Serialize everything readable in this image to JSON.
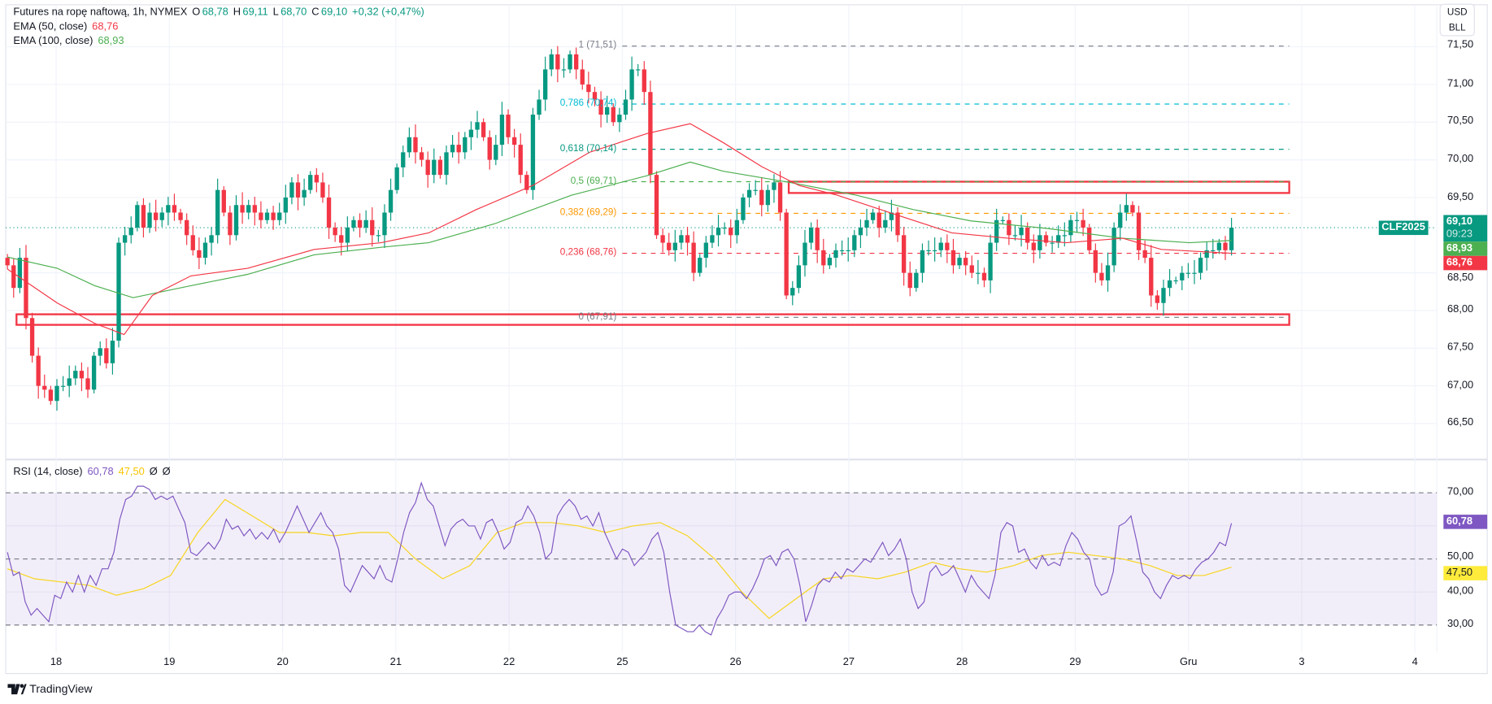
{
  "header": {
    "title": "Futures na ropę naftową, 1h, NYMEX",
    "o_label": "O",
    "o": "68,78",
    "h_label": "H",
    "h": "69,11",
    "l_label": "L",
    "l": "68,70",
    "c_label": "C",
    "c": "69,10",
    "change": "+0,32 (+0,47%)"
  },
  "ema50": {
    "label": "EMA (50, close)",
    "value": "68,76"
  },
  "ema100": {
    "label": "EMA (100, close)",
    "value": "68,93"
  },
  "rsi_legend": {
    "label": "RSI (14, close)",
    "value": "60,78",
    "ma_value": "47,50",
    "empty1": "Ø",
    "empty2": "Ø"
  },
  "unit_box": {
    "currency": "USD",
    "unit": "BLL"
  },
  "badges": {
    "symbol": "CLF2025",
    "price": "69,10",
    "countdown": "09:23",
    "ema100": "68,93",
    "ema50": "68,76",
    "rsi": "60,78",
    "rsi_ma": "47,50"
  },
  "branding": {
    "name": "TradingView"
  },
  "colors": {
    "up": "#089981",
    "down": "#F23645",
    "ema50": "#F23645",
    "ema100": "#4CAF50",
    "rsi": "#7E57C2",
    "rsi_ma": "#F7D51D"
  },
  "chart_data": [
    {
      "type": "candlestick",
      "title": "Futures na ropę naftową, 1h, NYMEX",
      "x_ticks": [
        "18",
        "19",
        "20",
        "21",
        "22",
        "25",
        "26",
        "27",
        "28",
        "29",
        "Gru",
        "3",
        "4"
      ],
      "x_range_days": [
        -0.43,
        10.38
      ],
      "y_ticks": [
        "71,50",
        "71,00",
        "70,50",
        "70,00",
        "69,50",
        "68,50",
        "68,00",
        "67,50",
        "67,00",
        "66,50"
      ],
      "y_tick_values": [
        71.5,
        71,
        70.5,
        70,
        69.5,
        68.5,
        68,
        67.5,
        67,
        66.5
      ],
      "last_price": 69.1,
      "closes": [
        68.6,
        68.3,
        68.7,
        67.9,
        67.4,
        67.0,
        66.95,
        66.8,
        67.0,
        67.0,
        67.1,
        67.2,
        67.1,
        66.95,
        67.4,
        67.5,
        67.3,
        67.6,
        68.9,
        69.0,
        69.1,
        69.4,
        69.1,
        69.3,
        69.2,
        69.3,
        69.4,
        69.3,
        69.2,
        69.0,
        68.8,
        68.7,
        68.9,
        69.0,
        69.6,
        69.3,
        69.0,
        69.4,
        69.3,
        69.4,
        69.3,
        69.2,
        69.3,
        69.2,
        69.3,
        69.5,
        69.7,
        69.5,
        69.6,
        69.8,
        69.7,
        69.5,
        69.1,
        69.0,
        68.9,
        69.1,
        69.2,
        69.1,
        69.2,
        69.0,
        69.0,
        69.3,
        69.6,
        69.9,
        70.1,
        70.3,
        70.1,
        70.0,
        69.8,
        70.0,
        69.8,
        70.1,
        70.2,
        70.1,
        70.3,
        70.4,
        70.5,
        70.3,
        70.0,
        70.2,
        70.6,
        70.3,
        70.2,
        69.8,
        69.6,
        70.6,
        70.8,
        71.2,
        71.4,
        71.2,
        71.2,
        71.4,
        71.2,
        71.0,
        70.9,
        70.8,
        70.6,
        70.7,
        70.5,
        70.6,
        70.8,
        71.2,
        71.2,
        70.9,
        69.8,
        69.0,
        68.9,
        68.8,
        68.9,
        69.0,
        68.9,
        68.5,
        68.7,
        68.9,
        69.0,
        69.1,
        69.1,
        69.0,
        69.2,
        69.5,
        69.6,
        69.6,
        69.4,
        69.6,
        69.7,
        69.3,
        68.2,
        68.3,
        68.6,
        68.9,
        69.1,
        68.8,
        68.6,
        68.7,
        68.8,
        68.8,
        68.8,
        69.0,
        69.1,
        69.2,
        69.3,
        69.1,
        69.2,
        69.3,
        69.0,
        68.5,
        68.3,
        68.5,
        68.8,
        68.8,
        68.8,
        68.9,
        68.8,
        68.6,
        68.7,
        68.6,
        68.5,
        68.5,
        68.4,
        68.9,
        69.2,
        69.2,
        69.0,
        69.0,
        69.1,
        68.9,
        68.8,
        69.0,
        68.9,
        68.9,
        69.0,
        69.0,
        69.2,
        69.2,
        69.1,
        68.8,
        68.5,
        68.4,
        68.6,
        69.1,
        69.3,
        69.4,
        69.3,
        68.8,
        68.7,
        68.2,
        68.1,
        68.3,
        68.4,
        68.4,
        68.5,
        68.5,
        68.5,
        68.7,
        68.8,
        68.8,
        68.9,
        68.8,
        69.1
      ],
      "ema50_points": [
        [
          -0.43,
          68.55
        ],
        [
          0.01,
          68.1
        ],
        [
          0.34,
          67.83
        ],
        [
          0.6,
          67.68
        ],
        [
          0.85,
          68.2
        ],
        [
          1.19,
          68.46
        ],
        [
          1.69,
          68.56
        ],
        [
          2.28,
          68.81
        ],
        [
          2.87,
          68.9
        ],
        [
          3.29,
          69.03
        ],
        [
          3.71,
          69.34
        ],
        [
          4.21,
          69.66
        ],
        [
          4.71,
          70.1
        ],
        [
          5.22,
          70.35
        ],
        [
          5.6,
          70.48
        ],
        [
          5.89,
          70.23
        ],
        [
          6.23,
          69.91
        ],
        [
          6.56,
          69.66
        ],
        [
          6.9,
          69.53
        ],
        [
          7.4,
          69.28
        ],
        [
          7.91,
          69.03
        ],
        [
          8.41,
          68.96
        ],
        [
          8.92,
          68.9
        ],
        [
          9.42,
          68.96
        ],
        [
          9.76,
          68.81
        ],
        [
          10.38,
          68.76
        ]
      ],
      "ema100_points": [
        [
          -0.43,
          68.71
        ],
        [
          0.01,
          68.56
        ],
        [
          0.34,
          68.33
        ],
        [
          0.68,
          68.17
        ],
        [
          1.19,
          68.33
        ],
        [
          1.69,
          68.48
        ],
        [
          2.28,
          68.74
        ],
        [
          2.87,
          68.84
        ],
        [
          3.29,
          68.9
        ],
        [
          3.87,
          69.15
        ],
        [
          4.55,
          69.53
        ],
        [
          5.22,
          69.79
        ],
        [
          5.6,
          69.97
        ],
        [
          5.89,
          69.85
        ],
        [
          6.48,
          69.7
        ],
        [
          7.07,
          69.53
        ],
        [
          7.57,
          69.34
        ],
        [
          8.08,
          69.19
        ],
        [
          8.75,
          69.09
        ],
        [
          9.42,
          68.96
        ],
        [
          10.01,
          68.9
        ],
        [
          10.38,
          68.93
        ]
      ],
      "fibonacci": {
        "range_days": [
          5.0,
          10.89
        ],
        "levels": [
          {
            "label": "1 (71,51)",
            "value": 71.51,
            "color": "#787B86"
          },
          {
            "label": "0,786 (70,74)",
            "value": 70.74,
            "color": "#00BCD4"
          },
          {
            "label": "0,618 (70,14)",
            "value": 70.14,
            "color": "#089981"
          },
          {
            "label": "0,5 (69,71)",
            "value": 69.71,
            "color": "#4CAF50"
          },
          {
            "label": "0,382 (69,29)",
            "value": 69.29,
            "color": "#FF9800"
          },
          {
            "label": "0,236 (68,76)",
            "value": 68.76,
            "color": "#F23645"
          },
          {
            "label": "0 (67,91)",
            "value": 67.91,
            "color": "#787B86"
          }
        ]
      },
      "zones": [
        {
          "from_day": 6.47,
          "to_day": 10.89,
          "top": 69.71,
          "bottom": 69.56
        },
        {
          "from_day": -0.35,
          "to_day": 10.89,
          "top": 67.95,
          "bottom": 67.81
        }
      ]
    },
    {
      "type": "line",
      "title": "RSI (14, close)",
      "y_ticks": [
        "70,00",
        "50,00",
        "40,00",
        "30,00"
      ],
      "y_tick_values": [
        70,
        50,
        40,
        30
      ],
      "bands": {
        "upper": 70,
        "middle": 50,
        "lower": 30
      },
      "x_range_days": [
        -0.43,
        10.38
      ],
      "rsi": [
        52,
        45,
        46,
        37,
        33,
        35,
        33,
        31,
        39,
        38,
        43,
        40,
        45,
        40,
        45,
        42,
        47,
        47,
        52,
        62,
        68,
        69,
        72,
        72,
        71,
        68,
        69,
        68,
        69,
        65,
        61,
        52,
        51,
        53,
        55,
        53,
        56,
        62,
        59,
        60,
        57,
        59,
        56,
        58,
        56,
        59,
        55,
        58,
        62,
        66,
        62,
        58,
        61,
        64,
        60,
        58,
        53,
        42,
        40,
        44,
        48,
        46,
        44,
        48,
        44,
        43,
        50,
        58,
        64,
        67,
        73,
        68,
        66,
        60,
        54,
        59,
        61,
        62,
        60,
        60,
        56,
        61,
        62,
        58,
        53,
        55,
        61,
        62,
        66,
        63,
        58,
        50,
        52,
        63,
        66,
        68,
        66,
        62,
        63,
        60,
        64,
        58,
        54,
        50,
        53,
        52,
        48,
        50,
        52,
        56,
        58,
        52,
        40,
        30,
        29,
        28,
        28,
        30,
        28,
        27,
        32,
        35,
        39,
        40,
        40,
        38,
        41,
        45,
        50,
        51,
        48,
        52,
        53,
        50,
        42,
        31,
        36,
        42,
        44,
        43,
        46,
        44,
        47,
        46,
        48,
        50,
        49,
        52,
        55,
        51,
        53,
        56,
        50,
        40,
        35,
        37,
        46,
        48,
        45,
        46,
        48,
        44,
        40,
        45,
        42,
        40,
        38,
        45,
        58,
        61,
        60,
        52,
        53,
        49,
        47,
        51,
        48,
        49,
        48,
        54,
        58,
        56,
        52,
        50,
        42,
        39,
        40,
        46,
        60,
        61,
        63,
        55,
        46,
        44,
        40,
        38,
        42,
        45,
        44,
        45,
        44,
        47,
        49,
        50,
        52,
        55,
        54,
        60.78
      ],
      "rsi_ma": [
        47,
        44,
        43,
        42,
        39,
        41,
        45,
        58,
        68,
        63,
        58,
        58,
        57,
        58,
        58,
        50,
        44,
        48,
        58,
        61,
        61,
        60,
        58,
        60,
        61,
        57,
        50,
        40,
        32,
        38,
        44,
        45,
        44,
        46,
        49,
        47,
        46,
        48,
        51,
        52,
        51,
        50,
        48,
        45,
        45,
        47.5
      ]
    }
  ]
}
